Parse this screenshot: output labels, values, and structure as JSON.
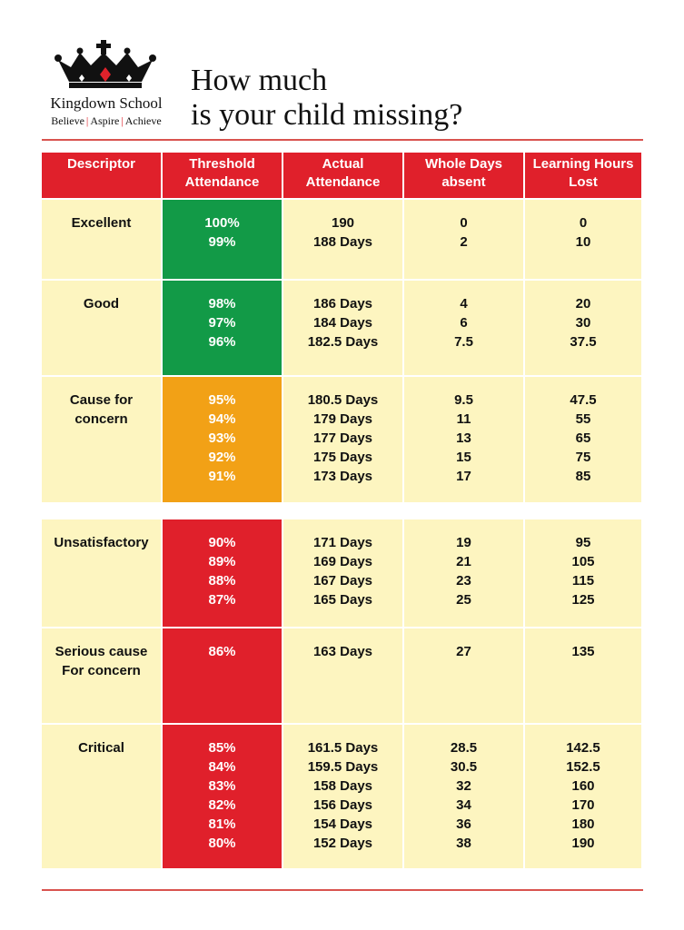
{
  "school": {
    "name": "Kingdown School",
    "motto": [
      "Believe",
      "Aspire",
      "Achieve"
    ],
    "motto_separator": "|"
  },
  "title_lines": [
    "How much",
    "is your child missing?"
  ],
  "colors": {
    "header_red": "#e0202b",
    "cell_cream": "#fdf5c0",
    "green": "#129a47",
    "amber": "#f2a116",
    "red": "#e0202b"
  },
  "table": {
    "headers": [
      "Descriptor",
      "Threshold Attendance",
      "Actual Attendance",
      "Whole Days absent",
      "Learning Hours Lost"
    ],
    "header_lines": [
      [
        "Descriptor"
      ],
      [
        "Threshold",
        "Attendance"
      ],
      [
        "Actual",
        "Attendance"
      ],
      [
        "Whole Days",
        "absent"
      ],
      [
        "Learning Hours",
        "Lost"
      ]
    ],
    "bands": [
      {
        "descriptor": [
          "Excellent"
        ],
        "color": "green",
        "threshold": [
          "100%",
          "99%"
        ],
        "actual": [
          "190",
          "188 Days"
        ],
        "days_absent": [
          "0",
          "2"
        ],
        "hours_lost": [
          "0",
          "10"
        ]
      },
      {
        "descriptor": [
          "Good"
        ],
        "color": "green",
        "threshold": [
          "98%",
          "97%",
          "96%"
        ],
        "actual": [
          "186 Days",
          "184 Days",
          "182.5 Days"
        ],
        "days_absent": [
          "4",
          "6",
          "7.5"
        ],
        "hours_lost": [
          "20",
          "30",
          "37.5"
        ]
      },
      {
        "descriptor": [
          "Cause for",
          "concern"
        ],
        "color": "amber",
        "threshold": [
          "95%",
          "94%",
          "93%",
          "92%",
          "91%"
        ],
        "actual": [
          "180.5 Days",
          "179 Days",
          "177 Days",
          "175 Days",
          "173 Days"
        ],
        "days_absent": [
          "9.5",
          "11",
          "13",
          "15",
          "17"
        ],
        "hours_lost": [
          "47.5",
          "55",
          "65",
          "75",
          "85"
        ]
      },
      {
        "descriptor": [
          "Unsatisfactory"
        ],
        "color": "red",
        "threshold": [
          "90%",
          "89%",
          "88%",
          "87%"
        ],
        "actual": [
          "171 Days",
          "169 Days",
          "167 Days",
          "165 Days"
        ],
        "days_absent": [
          "19",
          "21",
          "23",
          "25"
        ],
        "hours_lost": [
          "95",
          "105",
          "115",
          "125"
        ]
      },
      {
        "descriptor": [
          "Serious cause",
          "For concern"
        ],
        "color": "red",
        "threshold": [
          "86%"
        ],
        "actual": [
          "163 Days"
        ],
        "days_absent": [
          "27"
        ],
        "hours_lost": [
          "135"
        ]
      },
      {
        "descriptor": [
          "Critical"
        ],
        "color": "red",
        "threshold": [
          "85%",
          "84%",
          "83%",
          "82%",
          "81%",
          "80%"
        ],
        "actual": [
          "161.5 Days",
          "159.5 Days",
          "158 Days",
          "156 Days",
          "154 Days",
          "152 Days"
        ],
        "days_absent": [
          "28.5",
          "30.5",
          "32",
          "34",
          "36",
          "38"
        ],
        "hours_lost": [
          "142.5",
          "152.5",
          "160",
          "170",
          "180",
          "190"
        ]
      }
    ]
  }
}
